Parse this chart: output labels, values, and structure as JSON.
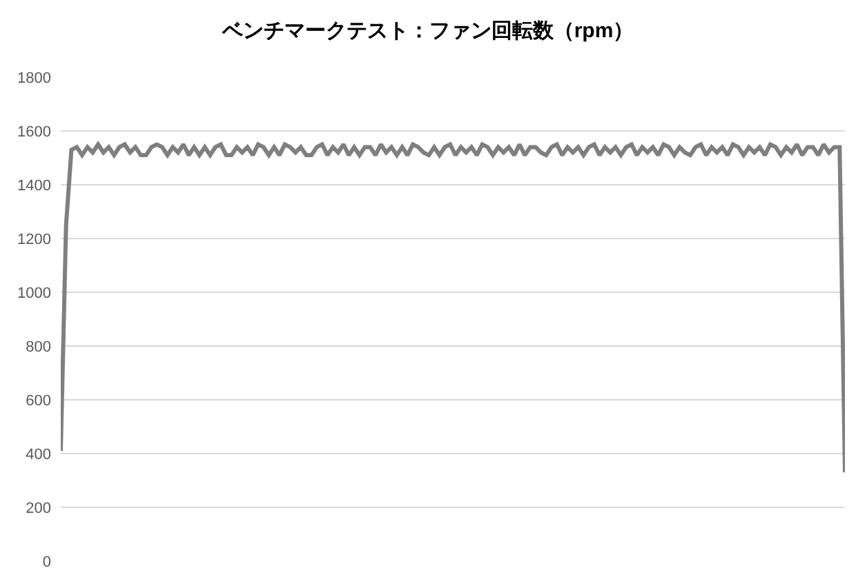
{
  "chart_data": {
    "type": "line",
    "title": "ベンチマークテスト：ファン回転数（rpm）",
    "categories": [
      null,
      null,
      null,
      null,
      null,
      null,
      null,
      null,
      null,
      null,
      null,
      null,
      null,
      null,
      null,
      null,
      null,
      null,
      null,
      null,
      null,
      null,
      null,
      null,
      null,
      null,
      null,
      null,
      null,
      null,
      null,
      null,
      null,
      null,
      null,
      null,
      null,
      null,
      null,
      null,
      null,
      null,
      null,
      null,
      null,
      null,
      null,
      null,
      null,
      null,
      null,
      null,
      null,
      null,
      null,
      null,
      null,
      null,
      null,
      null,
      null,
      null,
      null,
      null,
      null,
      null,
      null,
      null,
      null,
      null,
      null,
      null,
      null,
      null,
      null,
      null,
      null,
      null,
      null,
      null,
      null,
      null,
      null,
      null,
      null,
      null,
      null,
      null,
      null,
      null,
      null,
      null,
      null,
      null,
      null,
      null,
      null,
      null,
      null,
      null,
      null,
      null,
      null,
      null,
      null,
      null,
      null,
      null,
      null,
      null,
      null,
      null,
      null,
      null,
      null,
      null,
      null,
      null,
      null,
      null,
      null,
      null,
      null,
      null,
      null,
      null,
      null,
      null,
      null,
      null,
      null,
      null,
      null,
      null,
      null,
      null,
      null,
      null,
      null,
      null,
      null,
      null,
      null,
      null,
      null,
      null,
      null,
      null
    ],
    "series": [
      {
        "color": "#7f7f7f",
        "values": [
          410,
          1250,
          1530,
          1540,
          1510,
          1540,
          1520,
          1550,
          1520,
          1540,
          1510,
          1540,
          1550,
          1520,
          1540,
          1510,
          1510,
          1540,
          1550,
          1540,
          1510,
          1540,
          1520,
          1550,
          1510,
          1540,
          1510,
          1540,
          1510,
          1540,
          1550,
          1510,
          1510,
          1540,
          1520,
          1540,
          1510,
          1550,
          1540,
          1510,
          1540,
          1510,
          1550,
          1540,
          1520,
          1540,
          1510,
          1510,
          1540,
          1550,
          1510,
          1540,
          1520,
          1550,
          1510,
          1540,
          1510,
          1540,
          1540,
          1510,
          1550,
          1520,
          1540,
          1510,
          1540,
          1510,
          1550,
          1540,
          1520,
          1510,
          1540,
          1510,
          1540,
          1550,
          1510,
          1540,
          1520,
          1540,
          1510,
          1550,
          1540,
          1510,
          1540,
          1520,
          1540,
          1510,
          1550,
          1510,
          1540,
          1540,
          1520,
          1510,
          1540,
          1550,
          1510,
          1540,
          1520,
          1540,
          1510,
          1540,
          1550,
          1510,
          1540,
          1520,
          1540,
          1510,
          1540,
          1550,
          1510,
          1540,
          1520,
          1540,
          1510,
          1550,
          1540,
          1510,
          1540,
          1520,
          1510,
          1540,
          1550,
          1510,
          1540,
          1520,
          1540,
          1510,
          1550,
          1540,
          1510,
          1540,
          1520,
          1540,
          1510,
          1550,
          1540,
          1510,
          1540,
          1520,
          1550,
          1510,
          1540,
          1540,
          1510,
          1550,
          1520,
          1540,
          1540,
          330
        ]
      }
    ],
    "ylim": [
      0,
      1800
    ],
    "yticks": [
      0,
      200,
      400,
      600,
      800,
      1000,
      1200,
      1400,
      1600,
      1800
    ],
    "grid": "y",
    "tick_labels": "y"
  }
}
